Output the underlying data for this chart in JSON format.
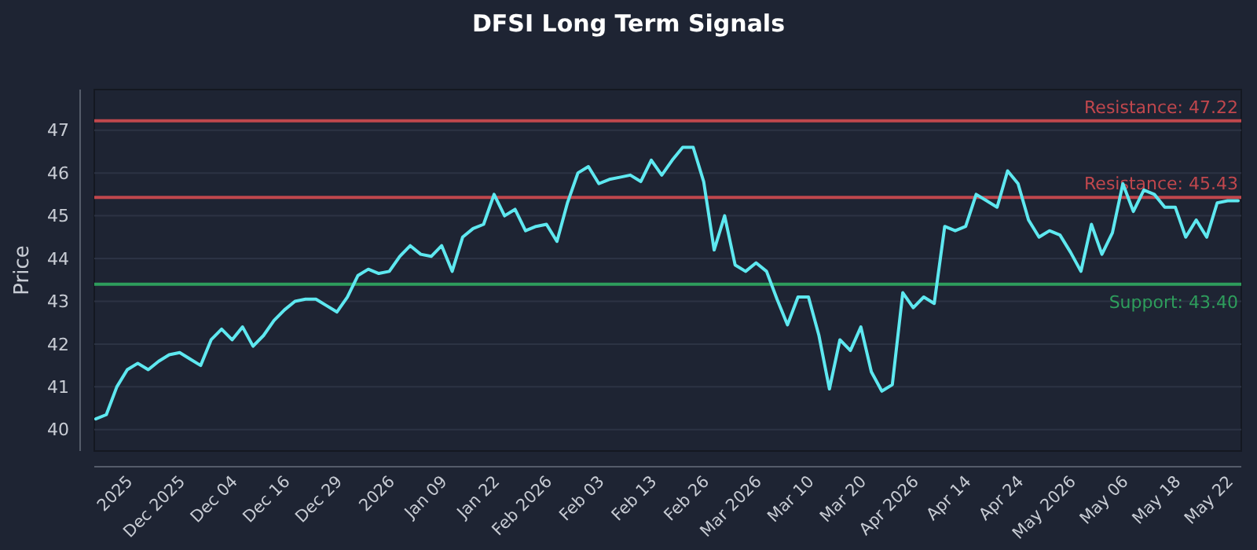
{
  "chart_data": {
    "type": "line",
    "title": "DFSI Long Term Signals",
    "ylabel": "Price",
    "categories": [
      null,
      null,
      null,
      "2025",
      null,
      null,
      null,
      null,
      "Dec 2025",
      null,
      null,
      null,
      null,
      "Dec 04",
      null,
      null,
      null,
      null,
      "Dec 16",
      null,
      null,
      null,
      null,
      "Dec 29",
      null,
      null,
      null,
      null,
      "2026",
      null,
      null,
      null,
      null,
      "Jan 09",
      null,
      null,
      null,
      null,
      "Jan 22",
      null,
      null,
      null,
      null,
      "Feb 2026",
      null,
      null,
      null,
      null,
      "Feb 03",
      null,
      null,
      null,
      null,
      "Feb 13",
      null,
      null,
      null,
      null,
      "Feb 26",
      null,
      null,
      null,
      null,
      "Mar 2026",
      null,
      null,
      null,
      null,
      "Mar 10",
      null,
      null,
      null,
      null,
      "Mar 20",
      null,
      null,
      null,
      null,
      "Apr 2026",
      null,
      null,
      null,
      null,
      "Apr 14",
      null,
      null,
      null,
      null,
      "Apr 24",
      null,
      null,
      null,
      null,
      "May 2026",
      null,
      null,
      null,
      null,
      "May 06",
      null,
      null,
      null,
      null,
      "May 18",
      null,
      null,
      null,
      null,
      "May 22",
      null
    ],
    "series": [
      {
        "color": "#5ee8f0",
        "values": [
          40.25,
          40.35,
          41.0,
          41.4,
          41.55,
          41.4,
          41.6,
          41.75,
          41.8,
          41.65,
          41.5,
          42.1,
          42.35,
          42.1,
          42.4,
          41.95,
          42.2,
          42.55,
          42.8,
          43.0,
          43.05,
          43.05,
          42.9,
          42.75,
          43.1,
          43.6,
          43.75,
          43.65,
          43.7,
          44.05,
          44.3,
          44.1,
          44.05,
          44.3,
          43.7,
          44.5,
          44.7,
          44.8,
          45.5,
          45.0,
          45.15,
          44.65,
          44.75,
          44.8,
          44.4,
          45.3,
          46.0,
          46.15,
          45.75,
          45.85,
          45.9,
          45.95,
          45.8,
          46.3,
          45.95,
          46.3,
          46.6,
          46.6,
          45.8,
          44.2,
          45.0,
          43.85,
          43.7,
          43.9,
          43.7,
          43.05,
          42.45,
          43.1,
          43.1,
          42.2,
          40.95,
          42.1,
          41.85,
          42.4,
          41.35,
          40.9,
          41.05,
          43.2,
          42.85,
          43.1,
          42.95,
          44.75,
          44.65,
          44.75,
          45.5,
          45.35,
          45.2,
          46.05,
          45.75,
          44.9,
          44.5,
          44.65,
          44.55,
          44.15,
          43.7,
          44.8,
          44.1,
          44.6,
          45.75,
          45.1,
          45.6,
          45.5,
          45.2,
          45.2,
          44.5,
          44.9,
          44.5,
          45.3,
          45.35,
          45.35
        ]
      }
    ],
    "ylim": [
      39.5,
      47.95
    ],
    "yticks": [
      40,
      41,
      42,
      43,
      44,
      45,
      46,
      47
    ],
    "grid": "y",
    "line_style": "solid",
    "ref_lines": [
      {
        "axis": "y",
        "value": 47.22,
        "label": "Resistance: 47.22",
        "color": "#c0474d"
      },
      {
        "axis": "y",
        "value": 45.43,
        "label": "Resistance: 45.43",
        "color": "#c0474d"
      },
      {
        "axis": "y",
        "value": 43.4,
        "label": "Support: 43.40",
        "color": "#2e9d5c"
      }
    ]
  }
}
